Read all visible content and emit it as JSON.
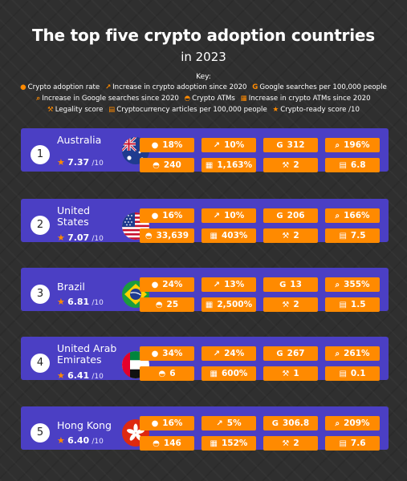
{
  "title": "The top five crypto adoption countries",
  "subtitle": "in 2023",
  "key_title": "Key:",
  "key": [
    {
      "icon": "person-icon",
      "glyph": "👤",
      "label": "Crypto adoption rate"
    },
    {
      "icon": "line-chart-icon",
      "glyph": "📈",
      "label": "Increase in crypto adoption since 2020"
    },
    {
      "icon": "google-icon",
      "glyph": "G",
      "label": "Google searches per 100,000 people"
    },
    {
      "icon": "search-icon",
      "glyph": "🔍",
      "label": "Increase in Google searches since 2020"
    },
    {
      "icon": "atm-icon",
      "glyph": "◓",
      "label": "Crypto ATMs"
    },
    {
      "icon": "calendar-icon",
      "glyph": "▦",
      "label": "Increase in crypto ATMs since 2020"
    },
    {
      "icon": "gavel-icon",
      "glyph": "⚒",
      "label": "Legality score"
    },
    {
      "icon": "newspaper-icon",
      "glyph": "▤",
      "label": "Cryptocurrency articles per 100,000 people"
    },
    {
      "icon": "star-icon",
      "glyph": "★",
      "label": "Crypto-ready score /10"
    }
  ],
  "out_of": "/10",
  "countries": [
    {
      "rank": "1",
      "name": "Australia",
      "score": "7.37",
      "stats": [
        "18%",
        "10%",
        "312",
        "196%",
        "240",
        "1,163%",
        "2",
        "6.8"
      ]
    },
    {
      "rank": "2",
      "name": "United States",
      "score": "7.07",
      "stats": [
        "16%",
        "10%",
        "206",
        "166%",
        "33,639",
        "403%",
        "2",
        "7.5"
      ]
    },
    {
      "rank": "3",
      "name": "Brazil",
      "score": "6.81",
      "stats": [
        "24%",
        "13%",
        "13",
        "355%",
        "25",
        "2,500%",
        "2",
        "1.5"
      ]
    },
    {
      "rank": "4",
      "name": "United Arab Emirates",
      "score": "6.41",
      "stats": [
        "34%",
        "24%",
        "267",
        "261%",
        "6",
        "600%",
        "1",
        "0.1"
      ]
    },
    {
      "rank": "5",
      "name": "Hong Kong",
      "score": "6.40",
      "stats": [
        "16%",
        "5%",
        "306.8",
        "209%",
        "146",
        "152%",
        "2",
        "7.6"
      ]
    }
  ],
  "colors": {
    "row_bg": "#4b3fc4",
    "accent": "#ff8a00",
    "page_bg": "#2f2f2f"
  }
}
